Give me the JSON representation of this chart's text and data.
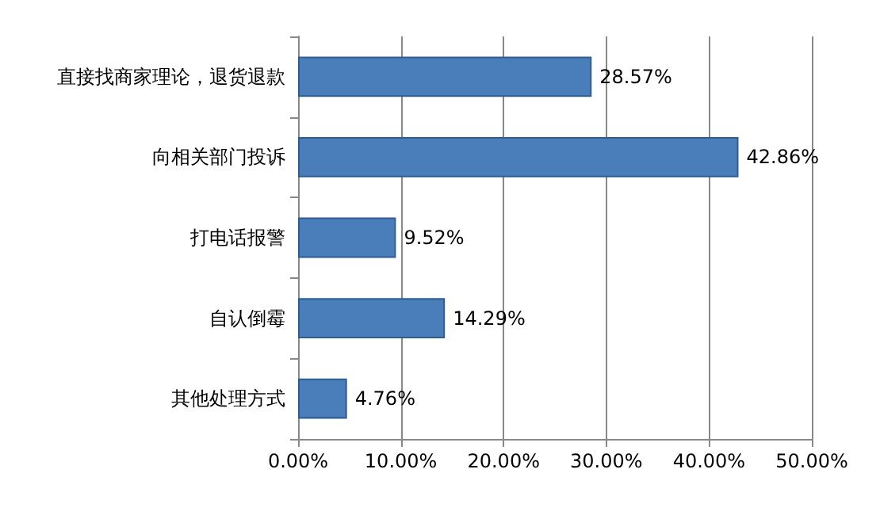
{
  "chart_data": {
    "type": "bar",
    "orientation": "horizontal",
    "categories": [
      "直接找商家理论，退货退款",
      "向相关部门投诉",
      "打电话报警",
      "自认倒霉",
      "其他处理方式"
    ],
    "values": [
      28.57,
      42.86,
      9.52,
      14.29,
      4.76
    ],
    "value_labels": [
      "28.57%",
      "42.86%",
      "9.52%",
      "14.29%",
      "4.76%"
    ],
    "color": "#4a7ebb",
    "xlim": [
      0,
      50
    ],
    "xticks": [
      {
        "value": 0,
        "label": "0.00%"
      },
      {
        "value": 10,
        "label": "10.00%"
      },
      {
        "value": 20,
        "label": "20.00%"
      },
      {
        "value": 30,
        "label": "30.00%"
      },
      {
        "value": 40,
        "label": "40.00%"
      },
      {
        "value": 50,
        "label": "50.00%"
      }
    ],
    "grid": "x"
  }
}
